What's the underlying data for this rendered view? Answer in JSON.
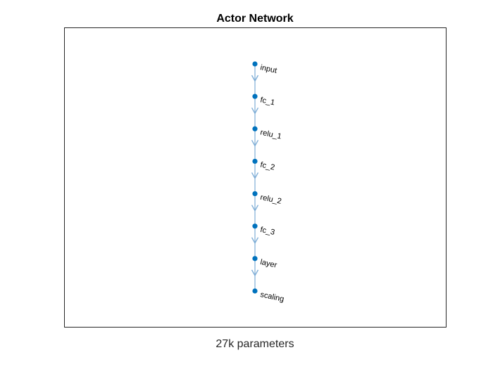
{
  "figure": {
    "title": "Actor Network",
    "caption": "27k parameters"
  },
  "graph": {
    "layout": "layered-vertical",
    "node_color": "#0072BD",
    "edge_color": "#7EADD6",
    "nodes": [
      "input",
      "fc_1",
      "relu_1",
      "fc_2",
      "relu_2",
      "fc_3",
      "layer",
      "scaling"
    ],
    "edges": [
      [
        "input",
        "fc_1"
      ],
      [
        "fc_1",
        "relu_1"
      ],
      [
        "relu_1",
        "fc_2"
      ],
      [
        "fc_2",
        "relu_2"
      ],
      [
        "relu_2",
        "fc_3"
      ],
      [
        "fc_3",
        "layer"
      ],
      [
        "layer",
        "scaling"
      ]
    ]
  }
}
